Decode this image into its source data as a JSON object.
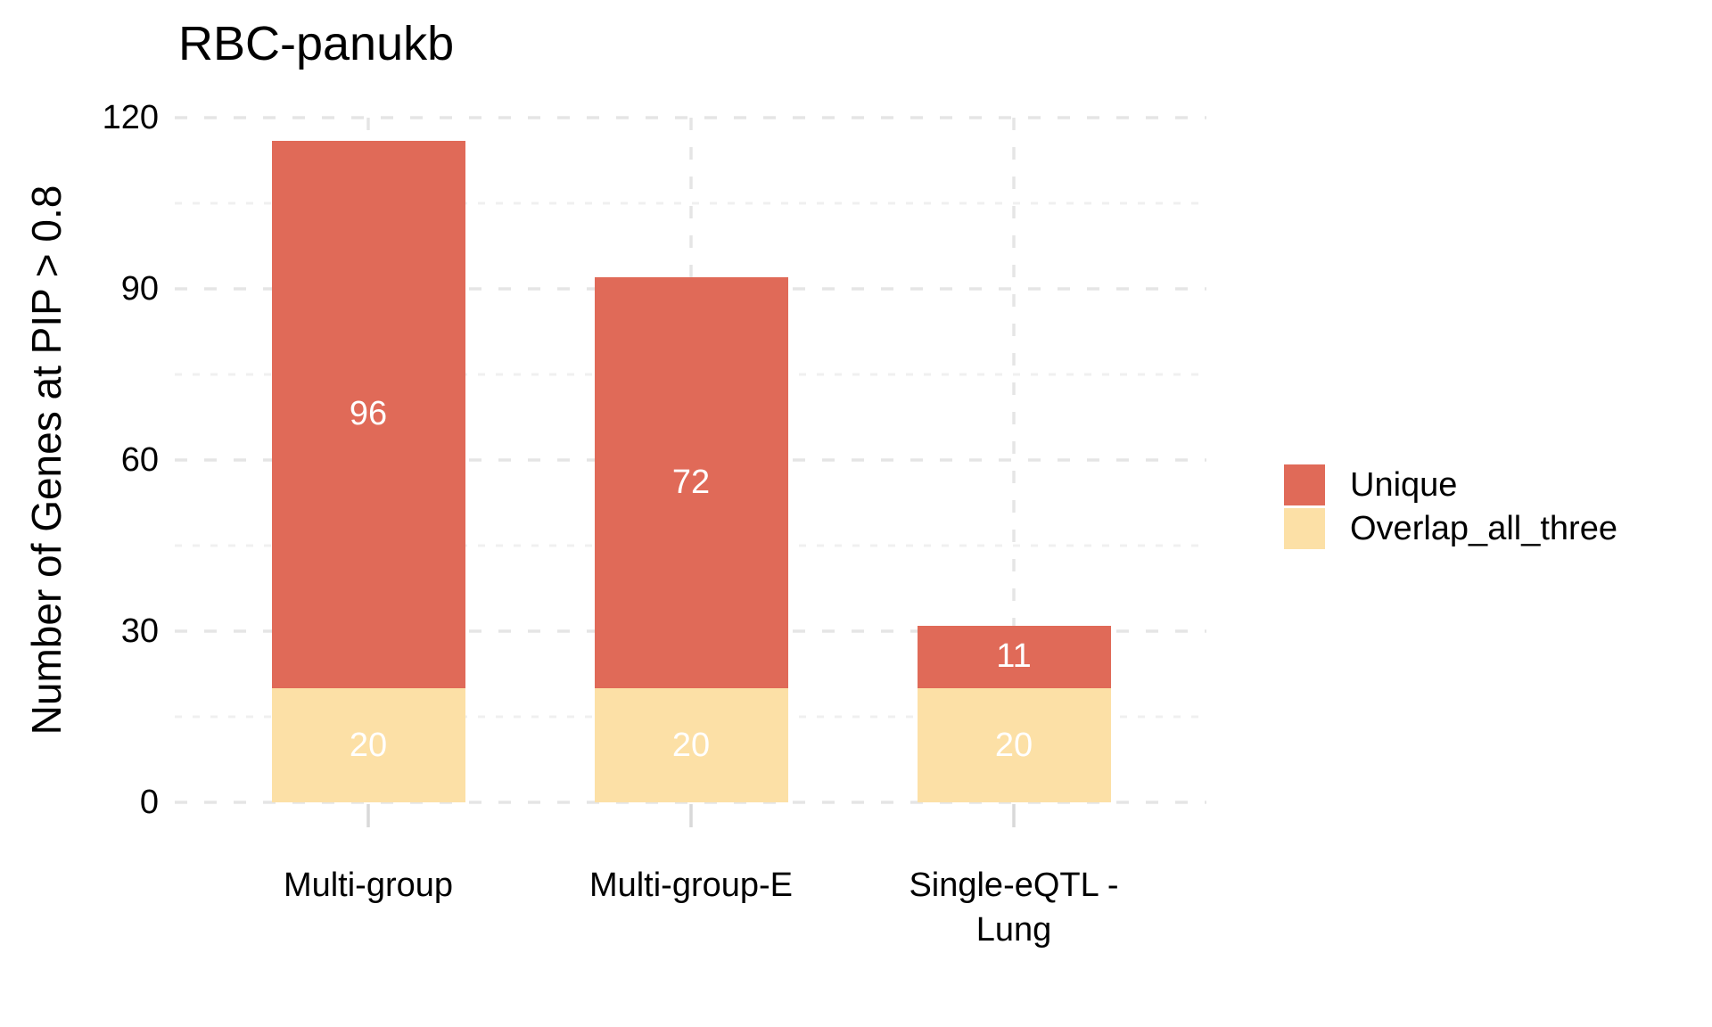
{
  "chart_data": {
    "type": "bar",
    "stacked": true,
    "title": "RBC-panukb",
    "xlabel": "",
    "ylabel": "Number of Genes at PIP > 0.8",
    "categories": [
      "Multi-group",
      "Multi-group-E",
      "Single-eQTL - Lung"
    ],
    "x_tick_lines": [
      [
        "Multi-group"
      ],
      [
        "Multi-group-E"
      ],
      [
        "Single-eQTL -",
        "Lung"
      ]
    ],
    "series": [
      {
        "name": "Overlap_all_three",
        "values": [
          20,
          20,
          20
        ],
        "color": "#FCE0A6"
      },
      {
        "name": "Unique",
        "values": [
          96,
          72,
          11
        ],
        "color": "#E06A58"
      }
    ],
    "totals": [
      116,
      92,
      31
    ],
    "ylim": [
      0,
      120
    ],
    "y_major_ticks": [
      0,
      30,
      60,
      90,
      120
    ],
    "y_minor_ticks": [
      15,
      45,
      75,
      105
    ],
    "grid": "dashed",
    "legend_position": "right",
    "legend": [
      {
        "label": "Unique",
        "color": "#E06A58"
      },
      {
        "label": "Overlap_all_three",
        "color": "#FCE0A6"
      }
    ]
  },
  "colors": {
    "background": "#FFFFFF",
    "grid_major": "#E5E5E5",
    "grid_minor": "#F0F0F0",
    "axis_tick": "#D9D9D9",
    "text": "#000000",
    "bar_label": "#FFFFFF"
  }
}
